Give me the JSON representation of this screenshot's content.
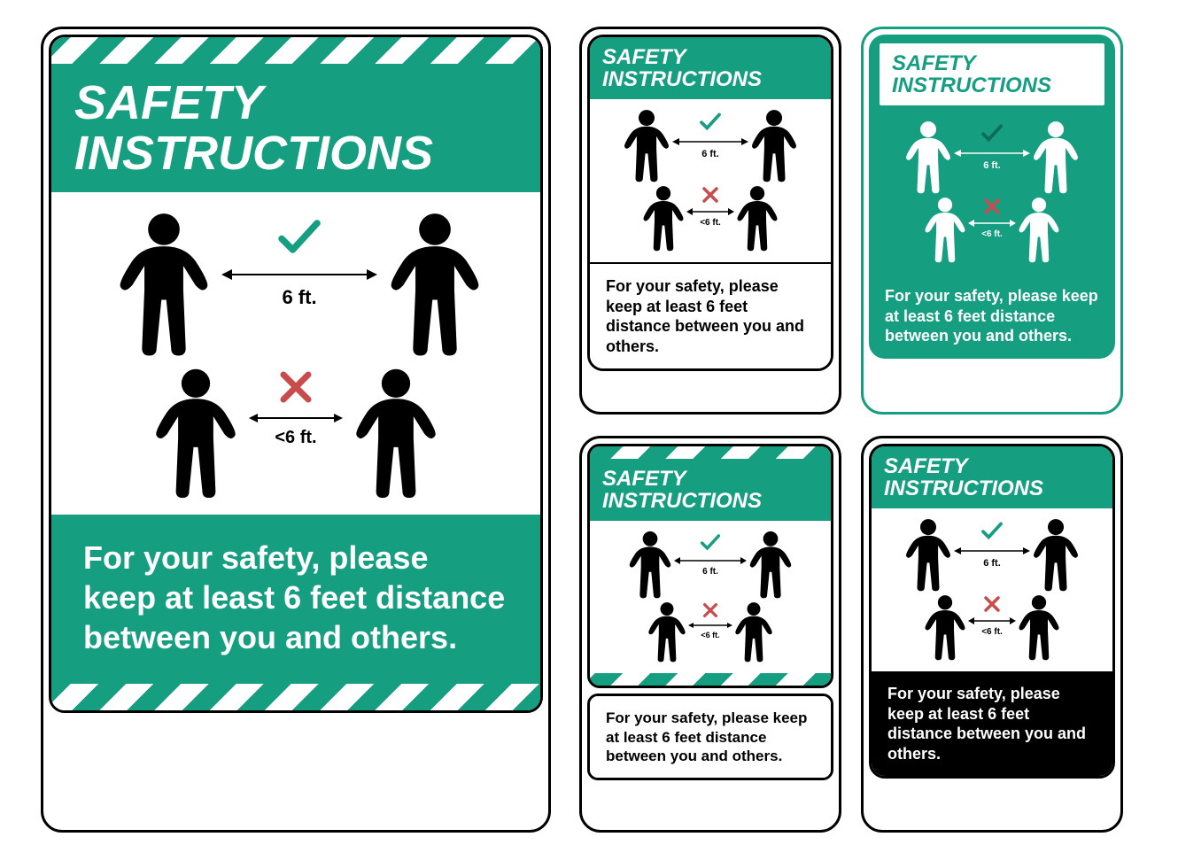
{
  "colors": {
    "teal": "#159e80",
    "red": "#c94b4b",
    "black": "#000000",
    "white": "#ffffff"
  },
  "title": "SAFETY INSTRUCTIONS",
  "body_text": "For your safety, please keep at least 6 feet distance between you and others.",
  "distance_ok": "6 ft.",
  "distance_bad": "<6 ft.",
  "signs": [
    {
      "id": "sign-large",
      "variant": "hazard-stripe-large",
      "header_style": "white-on-green",
      "body_style": "white-on-green",
      "picto_style": "black-on-white",
      "has_stripes": true
    },
    {
      "id": "sign-tr1",
      "variant": "small-plain",
      "header_style": "white-on-green",
      "body_style": "black-on-white",
      "picto_style": "black-on-white",
      "has_stripes": false
    },
    {
      "id": "sign-tr2",
      "variant": "small-green",
      "header_style": "green-on-white",
      "body_style": "white-on-green",
      "picto_style": "white-on-green",
      "has_stripes": false
    },
    {
      "id": "sign-br1",
      "variant": "small-stripe",
      "header_style": "white-on-green",
      "body_style": "black-on-white-box",
      "picto_style": "black-on-white",
      "has_stripes": true
    },
    {
      "id": "sign-br2",
      "variant": "small-blackfoot",
      "header_style": "white-on-green",
      "body_style": "white-on-black",
      "picto_style": "black-on-white",
      "has_stripes": false
    }
  ]
}
